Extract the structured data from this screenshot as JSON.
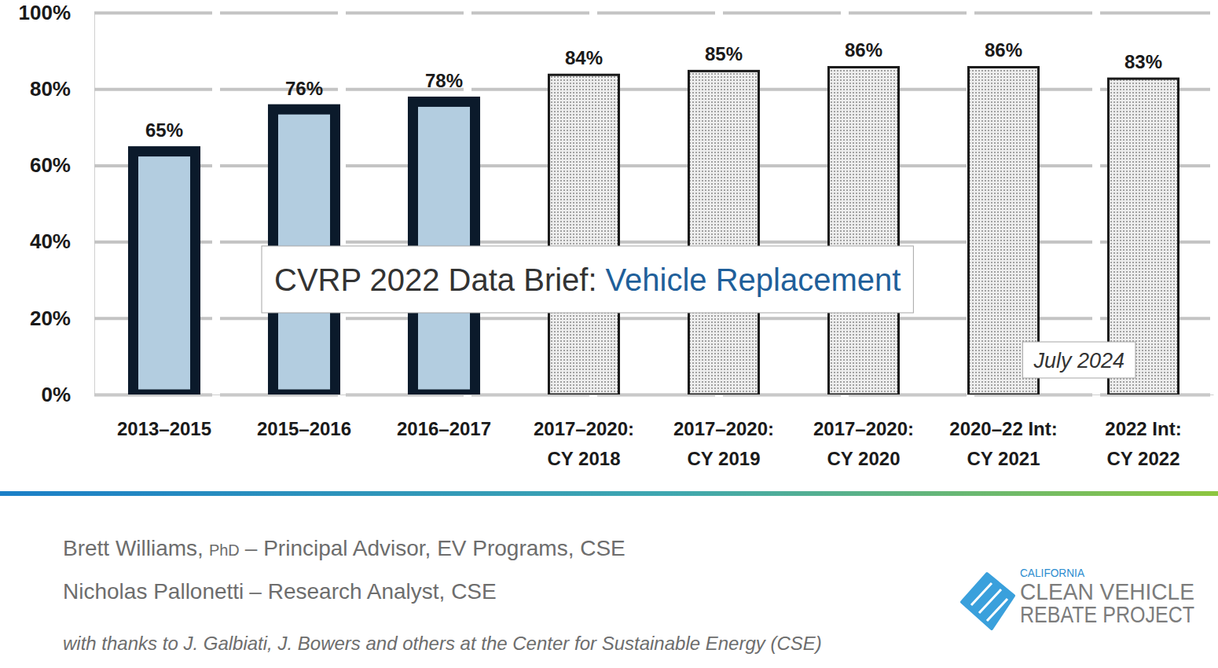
{
  "chart_data": {
    "type": "bar",
    "title": "CVRP 2022 Data Brief:",
    "subtitle": "Vehicle Replacement",
    "categories": [
      "2013–2015",
      "2015–2016",
      "2016–2017",
      "2017–2020:\nCY 2018",
      "2017–2020:\nCY 2019",
      "2017–2020:\nCY 2020",
      "2020–22 Int:\nCY 2021",
      "2022 Int:\nCY 2022"
    ],
    "values": [
      65,
      76,
      78,
      84,
      85,
      86,
      86,
      83
    ],
    "value_labels": [
      "65%",
      "76%",
      "78%",
      "84%",
      "85%",
      "86%",
      "86%",
      "83%"
    ],
    "colors": [
      "#b3cde0",
      "#b3cde0",
      "#b3cde0",
      "#d2d2d2",
      "#d2d2d2",
      "#d2d2d2",
      "#d2d2d2",
      "#d2d2d2"
    ],
    "ylim": [
      0,
      100
    ],
    "yticks": [
      {
        "value": 0,
        "label": "0%"
      },
      {
        "value": 20,
        "label": "20%"
      },
      {
        "value": 40,
        "label": "40%"
      },
      {
        "value": 60,
        "label": "60%"
      },
      {
        "value": 80,
        "label": "80%"
      },
      {
        "value": 100,
        "label": "100%"
      }
    ],
    "grid": true,
    "data_labels": true,
    "annotations": [
      "July 2024"
    ]
  },
  "footer": {
    "authors": [
      {
        "name": "Brett Williams,",
        "degree": "PhD",
        "role": "– Principal Advisor, EV Programs, CSE"
      },
      {
        "name": "Nicholas Pallonetti",
        "role": "– Research Analyst, CSE"
      }
    ],
    "thanks": "with thanks to J. Galbiati, J. Bowers and others at the Center for Sustainable Energy (CSE)",
    "logo": [
      "CALIFORNIA",
      "CLEAN VEHICLE",
      "REBATE PROJECT"
    ]
  }
}
